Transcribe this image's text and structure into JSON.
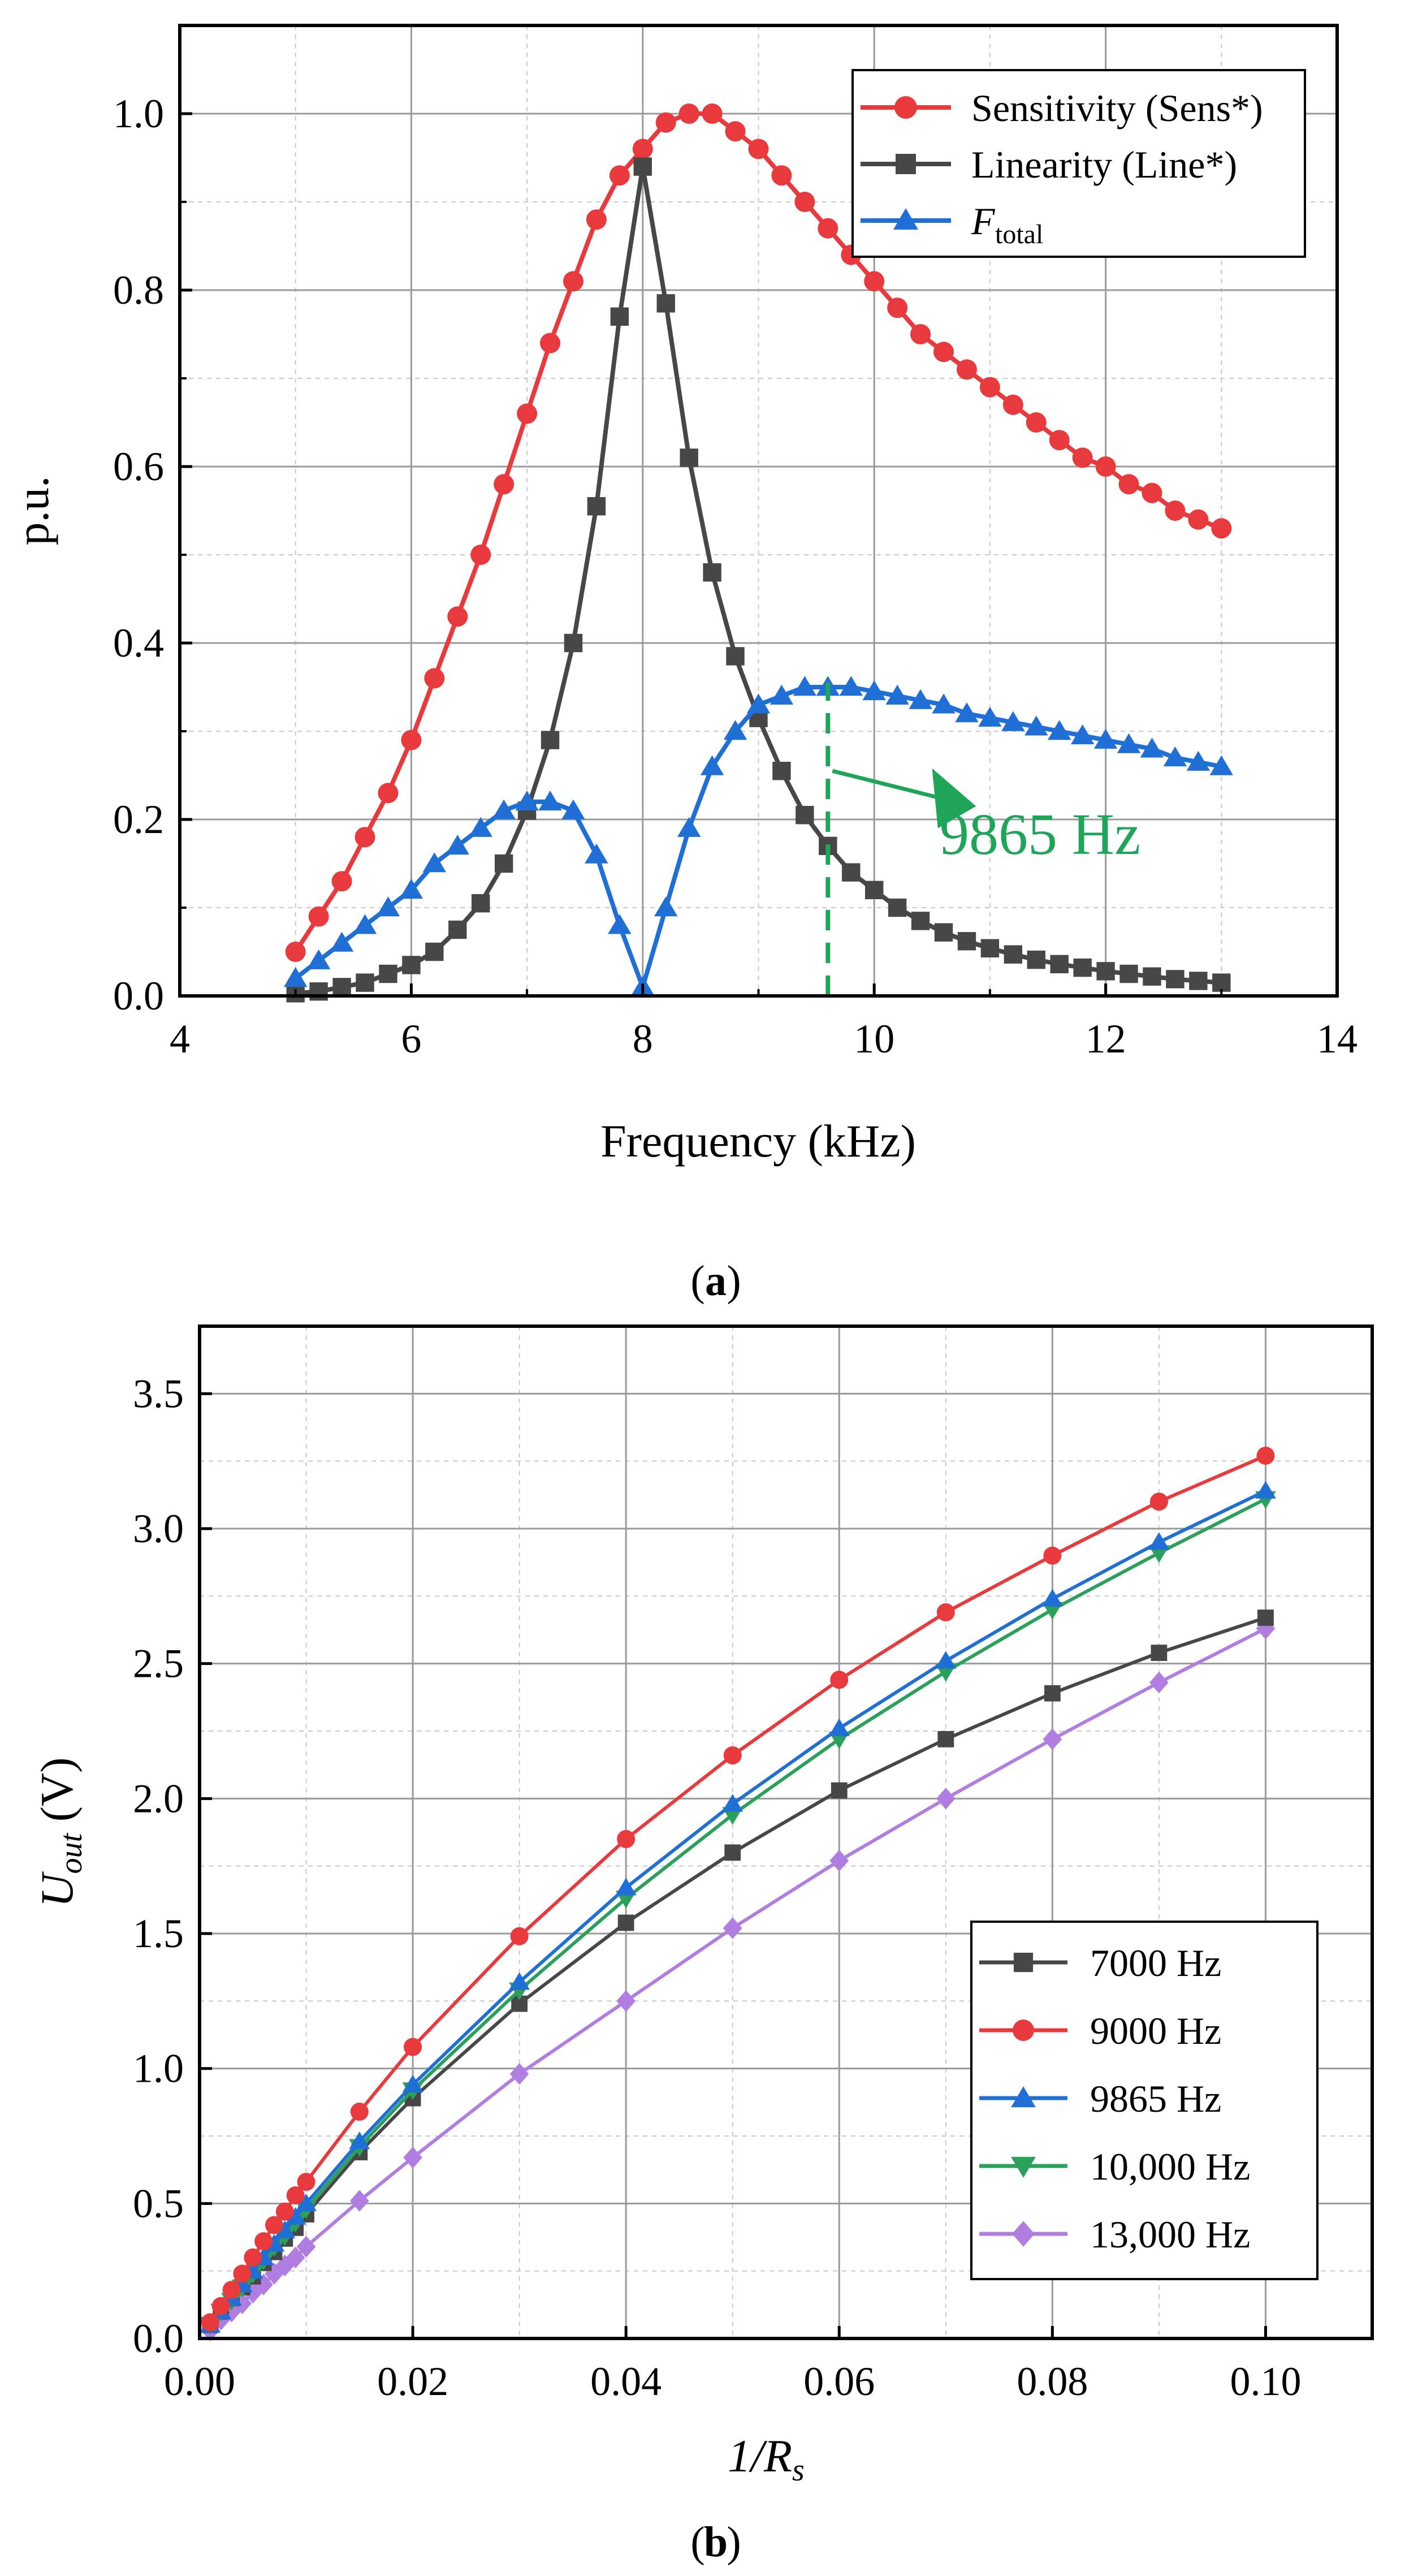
{
  "panel_a": {
    "caption": "a",
    "x_label": "Frequency (kHz)",
    "y_label": "p.u.",
    "x_ticks": [
      "4",
      "6",
      "8",
      "10",
      "12",
      "14"
    ],
    "y_ticks": [
      "0.0",
      "0.2",
      "0.4",
      "0.6",
      "0.8",
      "1.0"
    ],
    "legend": {
      "sensitivity": "Sensitivity (Sens*)",
      "linearity": "Linearity (Line*)",
      "ftotal_main": "F",
      "ftotal_sub": "total"
    },
    "annotation": "9865 Hz"
  },
  "panel_b": {
    "caption": "b",
    "x_label_main": "1/R",
    "x_label_sub": "s",
    "y_label_main": "U",
    "y_label_sub": "out",
    "y_label_unit": " (V)",
    "x_ticks": [
      "0.00",
      "0.02",
      "0.04",
      "0.06",
      "0.08",
      "0.10"
    ],
    "y_ticks": [
      "0.0",
      "0.5",
      "1.0",
      "1.5",
      "2.0",
      "2.5",
      "3.0",
      "3.5"
    ],
    "legend": [
      "7000 Hz",
      "9000 Hz",
      "9865 Hz",
      "10,000 Hz",
      "13,000 Hz"
    ]
  },
  "colors": {
    "red": "#e8393d",
    "dark": "#474747",
    "blue": "#1f6fd6",
    "green": "#2aa05a",
    "annotation_green": "#1fa55a",
    "purple": "#b07ee0"
  },
  "chart_data": [
    {
      "type": "line",
      "xlabel": "Frequency (kHz)",
      "ylabel": "p.u.",
      "xlim": [
        4,
        14
      ],
      "ylim": [
        0,
        1.1
      ],
      "grid": true,
      "legend_position": "top-right",
      "series": [
        {
          "name": "Sensitivity (Sens*)",
          "color": "#e8393d",
          "marker": "circle",
          "x": [
            5.0,
            5.2,
            5.4,
            5.6,
            5.8,
            6.0,
            6.2,
            6.4,
            6.6,
            6.8,
            7.0,
            7.2,
            7.4,
            7.6,
            7.8,
            8.0,
            8.2,
            8.4,
            8.6,
            8.8,
            9.0,
            9.2,
            9.4,
            9.6,
            9.8,
            10.0,
            10.2,
            10.4,
            10.6,
            10.8,
            11.0,
            11.2,
            11.4,
            11.6,
            11.8,
            12.0,
            12.2,
            12.4,
            12.6,
            12.8,
            13.0
          ],
          "y": [
            0.05,
            0.09,
            0.13,
            0.18,
            0.23,
            0.29,
            0.36,
            0.43,
            0.5,
            0.58,
            0.66,
            0.74,
            0.81,
            0.88,
            0.93,
            0.96,
            0.99,
            1.0,
            1.0,
            0.98,
            0.96,
            0.93,
            0.9,
            0.87,
            0.84,
            0.81,
            0.78,
            0.75,
            0.73,
            0.71,
            0.69,
            0.67,
            0.65,
            0.63,
            0.61,
            0.6,
            0.58,
            0.57,
            0.55,
            0.54,
            0.53
          ]
        },
        {
          "name": "Linearity (Line*)",
          "color": "#474747",
          "marker": "square",
          "x": [
            5.0,
            5.2,
            5.4,
            5.6,
            5.8,
            6.0,
            6.2,
            6.4,
            6.6,
            6.8,
            7.0,
            7.2,
            7.4,
            7.6,
            7.8,
            8.0,
            8.2,
            8.4,
            8.6,
            8.8,
            9.0,
            9.2,
            9.4,
            9.6,
            9.8,
            10.0,
            10.2,
            10.4,
            10.6,
            10.8,
            11.0,
            11.2,
            11.4,
            11.6,
            11.8,
            12.0,
            12.2,
            12.4,
            12.6,
            12.8,
            13.0
          ],
          "y": [
            0.003,
            0.005,
            0.01,
            0.015,
            0.025,
            0.035,
            0.05,
            0.075,
            0.105,
            0.15,
            0.21,
            0.29,
            0.4,
            0.555,
            0.77,
            0.94,
            0.785,
            0.61,
            0.48,
            0.385,
            0.315,
            0.255,
            0.205,
            0.17,
            0.14,
            0.12,
            0.1,
            0.085,
            0.072,
            0.062,
            0.054,
            0.047,
            0.041,
            0.036,
            0.032,
            0.028,
            0.025,
            0.022,
            0.019,
            0.017,
            0.015
          ]
        },
        {
          "name": "F_total",
          "color": "#1f6fd6",
          "marker": "triangle-up",
          "x": [
            5.0,
            5.2,
            5.4,
            5.6,
            5.8,
            6.0,
            6.2,
            6.4,
            6.6,
            6.8,
            7.0,
            7.2,
            7.4,
            7.6,
            7.8,
            8.0,
            8.2,
            8.4,
            8.6,
            8.8,
            9.0,
            9.2,
            9.4,
            9.6,
            9.8,
            10.0,
            10.2,
            10.4,
            10.6,
            10.8,
            11.0,
            11.2,
            11.4,
            11.6,
            11.8,
            12.0,
            12.2,
            12.4,
            12.6,
            12.8,
            13.0
          ],
          "y": [
            0.02,
            0.04,
            0.06,
            0.08,
            0.1,
            0.12,
            0.15,
            0.17,
            0.19,
            0.21,
            0.22,
            0.22,
            0.21,
            0.16,
            0.08,
            0.01,
            0.1,
            0.19,
            0.26,
            0.3,
            0.33,
            0.34,
            0.35,
            0.35,
            0.35,
            0.345,
            0.34,
            0.335,
            0.33,
            0.32,
            0.315,
            0.31,
            0.305,
            0.3,
            0.295,
            0.29,
            0.285,
            0.28,
            0.27,
            0.265,
            0.26
          ]
        }
      ],
      "annotations": [
        {
          "text": "9865 Hz",
          "x": 9.6,
          "y": 0.17
        }
      ]
    },
    {
      "type": "line",
      "xlabel": "1/R_s",
      "ylabel": "U_out (V)",
      "xlim": [
        0,
        0.11
      ],
      "ylim": [
        0,
        3.75
      ],
      "grid": true,
      "legend_position": "bottom-right",
      "x": [
        0.001,
        0.002,
        0.003,
        0.004,
        0.005,
        0.006,
        0.007,
        0.008,
        0.009,
        0.01,
        0.015,
        0.02,
        0.03,
        0.04,
        0.05,
        0.06,
        0.07,
        0.08,
        0.09,
        0.1
      ],
      "series": [
        {
          "name": "7000 Hz",
          "color": "#474747",
          "marker": "square",
          "values": [
            0.05,
            0.1,
            0.15,
            0.19,
            0.23,
            0.28,
            0.32,
            0.37,
            0.41,
            0.46,
            0.69,
            0.89,
            1.24,
            1.54,
            1.8,
            2.03,
            2.22,
            2.39,
            2.54,
            2.67
          ]
        },
        {
          "name": "9000 Hz",
          "color": "#e8393d",
          "marker": "circle",
          "values": [
            0.06,
            0.12,
            0.18,
            0.24,
            0.3,
            0.36,
            0.42,
            0.47,
            0.53,
            0.58,
            0.84,
            1.08,
            1.49,
            1.85,
            2.16,
            2.44,
            2.69,
            2.9,
            3.1,
            3.27
          ]
        },
        {
          "name": "9865 Hz",
          "color": "#1f6fd6",
          "marker": "triangle-up",
          "values": [
            0.05,
            0.1,
            0.15,
            0.2,
            0.25,
            0.3,
            0.35,
            0.4,
            0.45,
            0.5,
            0.73,
            0.94,
            1.32,
            1.67,
            1.98,
            2.26,
            2.51,
            2.74,
            2.95,
            3.14
          ]
        },
        {
          "name": "10,000 Hz",
          "color": "#2aa05a",
          "marker": "triangle-down",
          "values": [
            0.05,
            0.1,
            0.14,
            0.19,
            0.24,
            0.29,
            0.34,
            0.38,
            0.43,
            0.48,
            0.71,
            0.92,
            1.29,
            1.63,
            1.94,
            2.22,
            2.47,
            2.7,
            2.91,
            3.11
          ]
        },
        {
          "name": "13,000 Hz",
          "color": "#b07ee0",
          "marker": "diamond",
          "values": [
            0.03,
            0.07,
            0.1,
            0.13,
            0.17,
            0.2,
            0.24,
            0.27,
            0.3,
            0.34,
            0.51,
            0.67,
            0.98,
            1.25,
            1.52,
            1.77,
            2.0,
            2.22,
            2.43,
            2.63
          ]
        }
      ]
    }
  ]
}
